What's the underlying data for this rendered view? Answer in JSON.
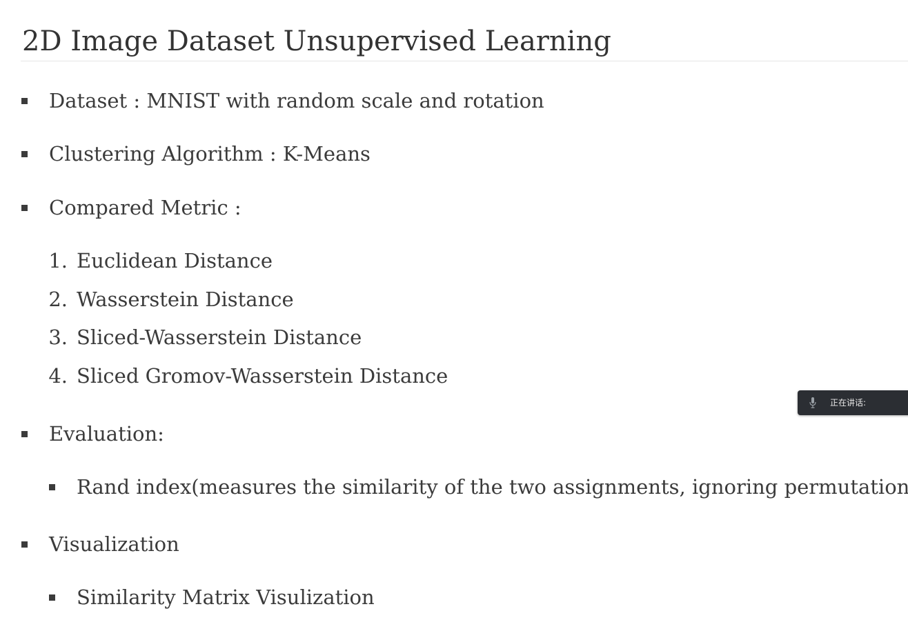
{
  "title": "2D Image Dataset Unsupervised Learning",
  "items": {
    "dataset": "Dataset : MNIST with random scale and rotation",
    "clustering": "Clustering Algorithm : K-Means",
    "compared_metric": "Compared Metric :",
    "metrics": [
      {
        "number": "1.",
        "label": "Euclidean Distance"
      },
      {
        "number": "2.",
        "label": "Wasserstein Distance"
      },
      {
        "number": "3.",
        "label": "Sliced-Wasserstein Distance"
      },
      {
        "number": "4.",
        "label": "Sliced Gromov-Wasserstein Distance"
      }
    ],
    "evaluation": "Evaluation:",
    "evaluation_sub": "Rand index(measures the similarity of the two assignments, ignoring permutations)",
    "visualization": "Visualization",
    "visualization_sub": "Similarity Matrix Visulization"
  },
  "overlay": {
    "speaking_label": "正在讲话:",
    "icon": "microphone-icon"
  }
}
